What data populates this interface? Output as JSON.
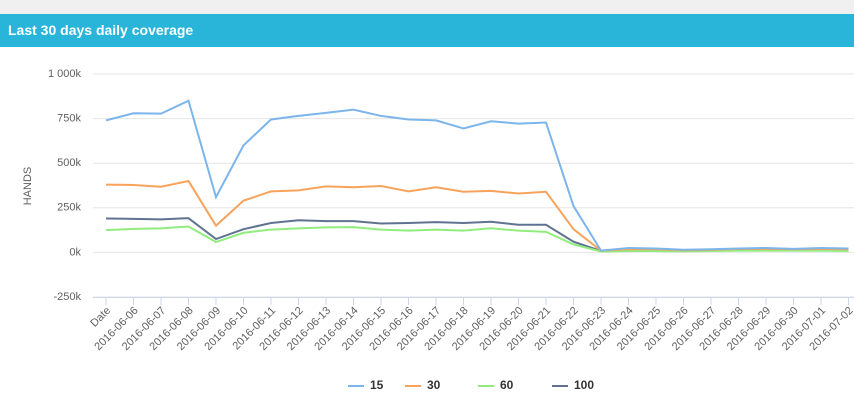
{
  "chart_data": {
    "type": "line",
    "title": "Last 30 days daily coverage",
    "ylabel": "HANDS",
    "categories": [
      "Date",
      "2016-06-06",
      "2016-06-07",
      "2016-06-08",
      "2016-06-09",
      "2016-06-10",
      "2016-06-11",
      "2016-06-12",
      "2016-06-13",
      "2016-06-14",
      "2016-06-15",
      "2016-06-16",
      "2016-06-17",
      "2016-06-18",
      "2016-06-19",
      "2016-06-20",
      "2016-06-21",
      "2016-06-22",
      "2016-06-23",
      "2016-06-24",
      "2016-06-25",
      "2016-06-26",
      "2016-06-27",
      "2016-06-28",
      "2016-06-29",
      "2016-06-30",
      "2016-07-01",
      "2016-07-02"
    ],
    "series": [
      {
        "name": "15",
        "color": "#7cb5ec",
        "values": [
          740000,
          780000,
          778000,
          850000,
          310000,
          600000,
          745000,
          765000,
          782000,
          800000,
          765000,
          745000,
          740000,
          695000,
          735000,
          722000,
          728000,
          260000,
          10000,
          25000,
          22000,
          15000,
          18000,
          22000,
          25000,
          20000,
          25000,
          22000
        ]
      },
      {
        "name": "30",
        "color": "#f7a35c",
        "values": [
          380000,
          378000,
          368000,
          400000,
          150000,
          290000,
          342000,
          348000,
          370000,
          365000,
          372000,
          342000,
          365000,
          340000,
          345000,
          330000,
          340000,
          130000,
          10000,
          18000,
          18000,
          12000,
          15000,
          20000,
          20000,
          18000,
          20000,
          18000
        ]
      },
      {
        "name": "60",
        "color": "#90ed7d",
        "values": [
          125000,
          132000,
          135000,
          145000,
          58000,
          110000,
          128000,
          135000,
          140000,
          142000,
          128000,
          122000,
          128000,
          122000,
          135000,
          122000,
          115000,
          45000,
          5000,
          8000,
          8000,
          6000,
          8000,
          10000,
          10000,
          10000,
          10000,
          8000
        ]
      },
      {
        "name": "100",
        "color": "#5f7391",
        "values": [
          190000,
          188000,
          185000,
          192000,
          75000,
          130000,
          165000,
          180000,
          175000,
          175000,
          162000,
          165000,
          170000,
          165000,
          172000,
          155000,
          155000,
          60000,
          8000,
          12000,
          12000,
          10000,
          12000,
          15000,
          15000,
          15000,
          15000,
          12000
        ]
      }
    ],
    "ylim": [
      -250000,
      1000000
    ],
    "yticks": [
      {
        "value": -250000,
        "label": "-250k"
      },
      {
        "value": 0,
        "label": "0k"
      },
      {
        "value": 250000,
        "label": "250k"
      },
      {
        "value": 500000,
        "label": "500k"
      },
      {
        "value": 750000,
        "label": "750k"
      },
      {
        "value": 1000000,
        "label": "1 000k"
      }
    ],
    "grid": true,
    "legend": "bottom"
  }
}
